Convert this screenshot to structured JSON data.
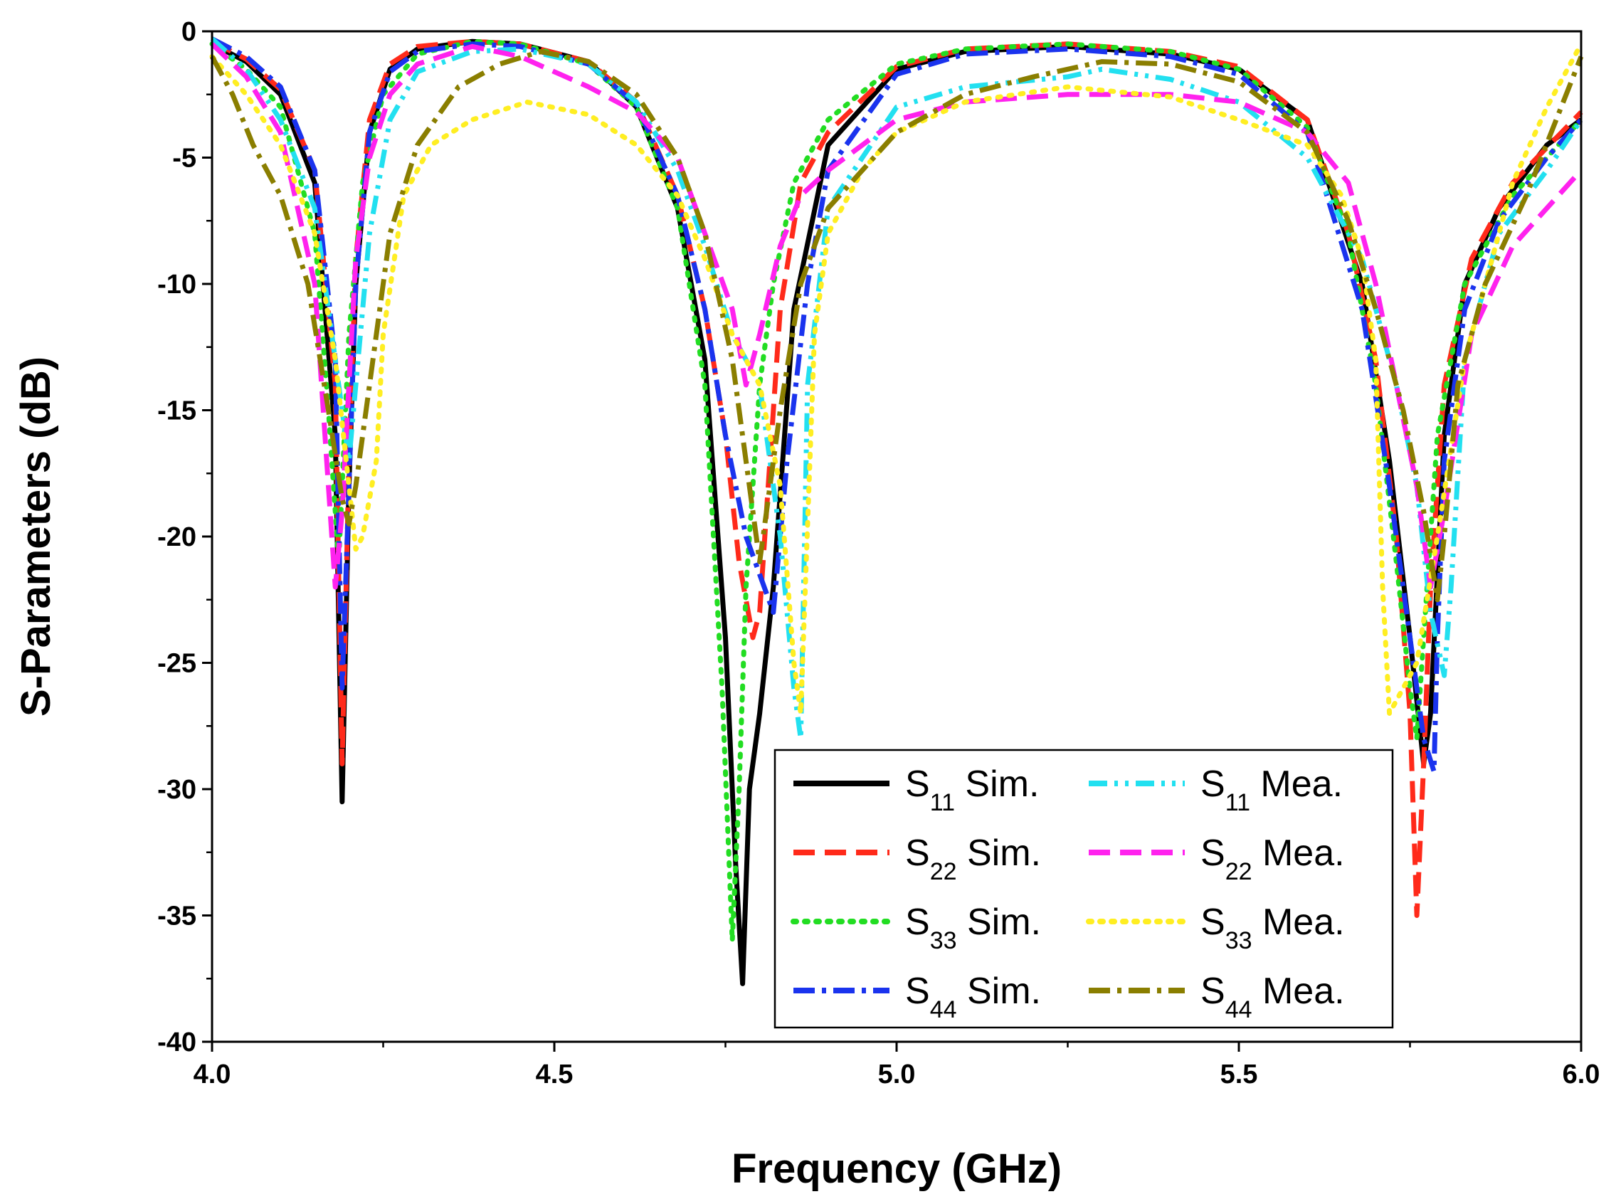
{
  "chart_data": {
    "type": "line",
    "title": "",
    "xlabel": "Frequency (GHz)",
    "ylabel": "S-Parameters (dB)",
    "xlim": [
      4.0,
      6.0
    ],
    "ylim": [
      -40,
      0
    ],
    "x_ticks": [
      "4.0",
      "4.5",
      "5.0",
      "5.5",
      "6.0"
    ],
    "y_ticks": [
      "0",
      "-5",
      "-10",
      "-15",
      "-20",
      "-25",
      "-30",
      "-35",
      "-40"
    ],
    "legend_position": "bottom-center",
    "series": [
      {
        "name": "S11 Sim.",
        "sub": "11",
        "suffix": "Sim.",
        "color": "#000000",
        "style": "solid",
        "x": [
          4.0,
          4.05,
          4.1,
          4.15,
          4.18,
          4.19,
          4.2,
          4.21,
          4.23,
          4.26,
          4.3,
          4.38,
          4.45,
          4.55,
          4.62,
          4.68,
          4.72,
          4.75,
          4.765,
          4.775,
          4.785,
          4.8,
          4.82,
          4.85,
          4.9,
          5.0,
          5.1,
          5.25,
          5.4,
          5.5,
          5.6,
          5.68,
          5.72,
          5.75,
          5.77,
          5.78,
          5.8,
          5.83,
          5.88,
          5.95,
          6.0
        ],
        "y": [
          -0.5,
          -1.2,
          -2.5,
          -6.0,
          -16.0,
          -30.5,
          -18.0,
          -10.0,
          -4.0,
          -1.5,
          -0.7,
          -0.4,
          -0.5,
          -1.2,
          -3.0,
          -7.0,
          -13.0,
          -24.0,
          -33.0,
          -37.7,
          -30.0,
          -27.0,
          -22.0,
          -11.0,
          -4.5,
          -1.5,
          -0.8,
          -0.6,
          -0.9,
          -1.5,
          -3.5,
          -10.0,
          -17.0,
          -24.0,
          -29.0,
          -27.0,
          -16.0,
          -10.0,
          -7.0,
          -4.5,
          -3.5
        ]
      },
      {
        "name": "S22 Sim.",
        "sub": "22",
        "suffix": "Sim.",
        "color": "#ff2a1a",
        "style": "dash",
        "x": [
          4.0,
          4.05,
          4.1,
          4.15,
          4.18,
          4.19,
          4.2,
          4.21,
          4.23,
          4.26,
          4.3,
          4.38,
          4.45,
          4.55,
          4.62,
          4.68,
          4.72,
          4.75,
          4.77,
          4.79,
          4.8,
          4.81,
          4.83,
          4.86,
          4.9,
          5.0,
          5.1,
          5.25,
          5.4,
          5.5,
          5.6,
          5.66,
          5.7,
          5.73,
          5.75,
          5.76,
          5.77,
          5.78,
          5.8,
          5.84,
          5.9,
          6.0
        ],
        "y": [
          -0.4,
          -1.1,
          -2.3,
          -5.5,
          -14.0,
          -29.0,
          -17.0,
          -9.0,
          -3.5,
          -1.3,
          -0.6,
          -0.4,
          -0.5,
          -1.2,
          -2.8,
          -6.5,
          -11.0,
          -16.0,
          -21.0,
          -24.0,
          -23.0,
          -19.0,
          -11.0,
          -6.0,
          -4.0,
          -1.4,
          -0.7,
          -0.5,
          -0.8,
          -1.4,
          -3.5,
          -8.0,
          -13.0,
          -20.0,
          -27.0,
          -35.0,
          -29.0,
          -22.0,
          -14.0,
          -9.0,
          -6.0,
          -3.2
        ]
      },
      {
        "name": "S33 Sim.",
        "sub": "33",
        "suffix": "Sim.",
        "color": "#22dd22",
        "style": "dot",
        "x": [
          4.0,
          4.05,
          4.1,
          4.15,
          4.17,
          4.185,
          4.2,
          4.22,
          4.25,
          4.3,
          4.38,
          4.45,
          4.55,
          4.62,
          4.68,
          4.72,
          4.745,
          4.76,
          4.77,
          4.78,
          4.8,
          4.82,
          4.85,
          4.9,
          5.0,
          5.1,
          5.25,
          5.4,
          5.5,
          5.6,
          5.66,
          5.7,
          5.73,
          5.75,
          5.76,
          5.77,
          5.79,
          5.83,
          5.9,
          6.0
        ],
        "y": [
          -0.5,
          -1.5,
          -3.0,
          -8.0,
          -15.0,
          -21.0,
          -12.0,
          -6.0,
          -2.5,
          -0.9,
          -0.4,
          -0.5,
          -1.3,
          -3.0,
          -7.0,
          -14.0,
          -26.0,
          -36.0,
          -30.0,
          -22.0,
          -14.0,
          -10.0,
          -6.0,
          -3.5,
          -1.3,
          -0.7,
          -0.5,
          -0.8,
          -1.5,
          -3.8,
          -8.0,
          -14.0,
          -21.0,
          -26.0,
          -28.0,
          -24.0,
          -16.0,
          -10.0,
          -6.5,
          -3.5
        ]
      },
      {
        "name": "S44 Sim.",
        "sub": "44",
        "suffix": "Sim.",
        "color": "#1a33ee",
        "style": "dashdot",
        "x": [
          4.0,
          4.05,
          4.1,
          4.15,
          4.18,
          4.19,
          4.2,
          4.21,
          4.23,
          4.26,
          4.3,
          4.38,
          4.45,
          4.55,
          4.62,
          4.68,
          4.72,
          4.75,
          4.78,
          4.8,
          4.82,
          4.84,
          4.87,
          4.9,
          5.0,
          5.1,
          5.25,
          5.4,
          5.5,
          5.6,
          5.68,
          5.72,
          5.75,
          5.77,
          5.785,
          5.79,
          5.8,
          5.83,
          5.88,
          5.95,
          6.0
        ],
        "y": [
          -0.3,
          -1.0,
          -2.2,
          -5.5,
          -13.0,
          -26.0,
          -18.0,
          -10.0,
          -4.0,
          -1.6,
          -0.8,
          -0.5,
          -0.6,
          -1.3,
          -2.9,
          -6.5,
          -11.0,
          -16.0,
          -20.0,
          -21.5,
          -23.0,
          -17.0,
          -10.0,
          -5.5,
          -1.7,
          -0.9,
          -0.7,
          -1.0,
          -1.7,
          -4.0,
          -11.0,
          -18.0,
          -24.0,
          -28.0,
          -29.3,
          -24.0,
          -17.0,
          -11.0,
          -7.5,
          -5.0,
          -3.5
        ]
      },
      {
        "name": "S11 Mea.",
        "sub": "11",
        "suffix": "Mea.",
        "color": "#22e0f0",
        "style": "dashdotdot",
        "x": [
          4.0,
          4.05,
          4.1,
          4.15,
          4.17,
          4.19,
          4.2,
          4.21,
          4.23,
          4.26,
          4.3,
          4.38,
          4.45,
          4.55,
          4.62,
          4.68,
          4.72,
          4.76,
          4.8,
          4.83,
          4.85,
          4.86,
          4.87,
          4.9,
          5.0,
          5.1,
          5.25,
          5.3,
          5.4,
          5.5,
          5.6,
          5.68,
          5.73,
          5.76,
          5.78,
          5.8,
          5.81,
          5.83,
          5.88,
          5.95,
          6.0
        ],
        "y": [
          -0.3,
          -1.5,
          -3.5,
          -7.0,
          -11.0,
          -15.0,
          -17.0,
          -14.0,
          -8.0,
          -3.5,
          -1.6,
          -0.8,
          -0.7,
          -1.3,
          -2.8,
          -5.5,
          -8.5,
          -12.0,
          -14.0,
          -20.0,
          -26.0,
          -28.0,
          -14.0,
          -7.0,
          -3.0,
          -2.2,
          -1.8,
          -1.5,
          -1.9,
          -2.8,
          -5.0,
          -9.0,
          -14.0,
          -18.0,
          -23.0,
          -25.5,
          -22.0,
          -13.0,
          -8.0,
          -5.5,
          -3.5
        ]
      },
      {
        "name": "S22 Mea.",
        "sub": "22",
        "suffix": "Mea.",
        "color": "#ff22ee",
        "style": "dash",
        "x": [
          4.0,
          4.05,
          4.1,
          4.15,
          4.17,
          4.18,
          4.19,
          4.2,
          4.21,
          4.23,
          4.26,
          4.3,
          4.38,
          4.45,
          4.55,
          4.62,
          4.68,
          4.72,
          4.76,
          4.78,
          4.8,
          4.83,
          4.86,
          4.9,
          5.0,
          5.1,
          5.25,
          5.4,
          5.5,
          5.6,
          5.66,
          5.7,
          5.73,
          5.76,
          5.78,
          5.8,
          5.84,
          5.9,
          6.0
        ],
        "y": [
          -0.5,
          -1.8,
          -4.0,
          -10.0,
          -18.0,
          -22.0,
          -19.0,
          -14.0,
          -9.0,
          -5.0,
          -2.5,
          -1.3,
          -0.6,
          -1.0,
          -2.2,
          -3.2,
          -5.0,
          -8.0,
          -11.0,
          -14.0,
          -12.0,
          -8.5,
          -6.5,
          -5.5,
          -3.5,
          -2.8,
          -2.5,
          -2.5,
          -2.8,
          -4.0,
          -6.0,
          -10.0,
          -14.0,
          -18.0,
          -22.0,
          -19.0,
          -12.0,
          -8.5,
          -5.5
        ]
      },
      {
        "name": "S33 Mea.",
        "sub": "33",
        "suffix": "Mea.",
        "color": "#ffee22",
        "style": "dot",
        "x": [
          4.0,
          4.05,
          4.1,
          4.15,
          4.18,
          4.2,
          4.21,
          4.22,
          4.24,
          4.25,
          4.28,
          4.32,
          4.38,
          4.46,
          4.55,
          4.62,
          4.68,
          4.72,
          4.76,
          4.8,
          4.83,
          4.85,
          4.86,
          4.88,
          4.9,
          4.95,
          5.0,
          5.1,
          5.25,
          5.4,
          5.5,
          5.6,
          5.65,
          5.68,
          5.7,
          5.71,
          5.72,
          5.74,
          5.76,
          5.79,
          5.83,
          5.9,
          5.95,
          6.0
        ],
        "y": [
          -1.0,
          -2.5,
          -4.5,
          -8.0,
          -13.0,
          -18.0,
          -20.5,
          -20.0,
          -17.0,
          -12.0,
          -6.5,
          -4.5,
          -3.5,
          -2.8,
          -3.3,
          -4.5,
          -6.5,
          -9.0,
          -12.0,
          -14.0,
          -18.0,
          -25.0,
          -27.0,
          -12.0,
          -8.0,
          -5.5,
          -4.0,
          -2.8,
          -2.2,
          -2.6,
          -3.5,
          -4.5,
          -6.5,
          -9.0,
          -13.0,
          -22.0,
          -27.0,
          -26.0,
          -25.0,
          -20.0,
          -13.0,
          -6.0,
          -3.0,
          -0.5
        ]
      },
      {
        "name": "S44 Mea.",
        "sub": "44",
        "suffix": "Mea.",
        "color": "#8a7e00",
        "style": "dashdot",
        "x": [
          4.0,
          4.03,
          4.06,
          4.1,
          4.14,
          4.17,
          4.19,
          4.2,
          4.21,
          4.23,
          4.26,
          4.3,
          4.36,
          4.42,
          4.48,
          4.55,
          4.62,
          4.68,
          4.72,
          4.76,
          4.8,
          4.83,
          4.86,
          4.9,
          5.0,
          5.1,
          5.2,
          5.3,
          5.4,
          5.5,
          5.6,
          5.66,
          5.7,
          5.74,
          5.77,
          5.79,
          5.8,
          5.82,
          5.86,
          5.92,
          6.0
        ],
        "y": [
          -1.0,
          -2.5,
          -4.5,
          -6.5,
          -10.0,
          -15.0,
          -18.5,
          -19.5,
          -18.0,
          -14.0,
          -8.0,
          -4.5,
          -2.2,
          -1.3,
          -0.8,
          -1.2,
          -2.5,
          -5.0,
          -8.0,
          -13.0,
          -21.0,
          -15.0,
          -10.0,
          -7.0,
          -4.0,
          -2.5,
          -1.8,
          -1.2,
          -1.3,
          -2.0,
          -4.0,
          -7.5,
          -11.0,
          -15.0,
          -19.0,
          -22.5,
          -20.0,
          -14.0,
          -10.0,
          -6.5,
          -1.0
        ]
      }
    ]
  }
}
